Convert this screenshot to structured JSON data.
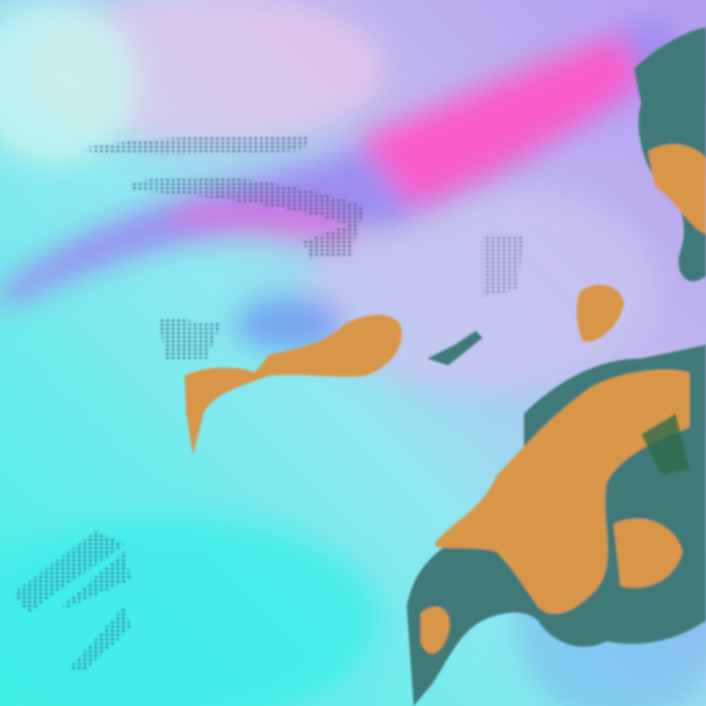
{
  "image": {
    "kind": "false-color satellite imagery",
    "colors": {
      "ocean_cloud_cyan": "#4ff0ea",
      "haze_lavender": "#b9b3f0",
      "plume_magenta": "#ff5ac8",
      "plume_violet": "#9a86ee",
      "land_ochre": "#d8964a",
      "land_shadow": "#3f7a78",
      "dark_speckle": "#2a4a6a"
    }
  }
}
